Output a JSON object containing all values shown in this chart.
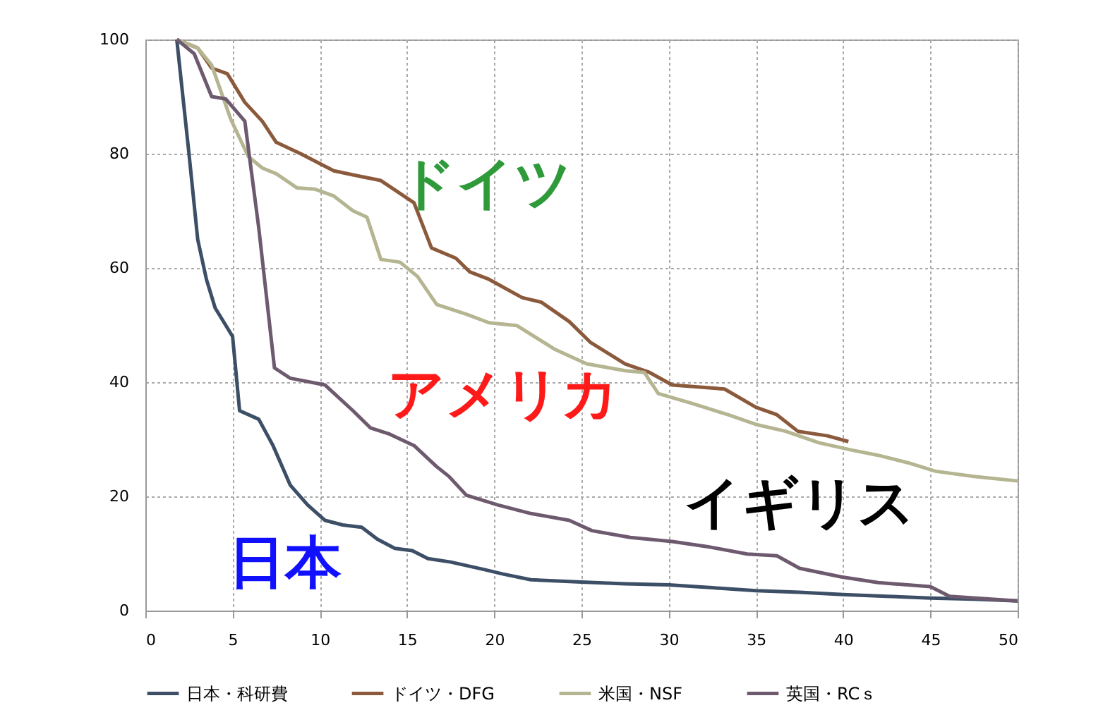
{
  "chart_data": {
    "type": "line",
    "xlim": [
      0,
      50
    ],
    "xticks": [
      0,
      5,
      10,
      15,
      20,
      25,
      30,
      35,
      40,
      45,
      50
    ],
    "ylim": [
      0,
      100
    ],
    "yticks": [
      0,
      20,
      40,
      60,
      80,
      100
    ],
    "grid": true,
    "legend": "bottom",
    "marker": "none",
    "line_style": "solid",
    "series": [
      {
        "name": "日本・科研費",
        "color": "#3d4f66",
        "x": [
          1.8,
          2.5,
          3,
          3.5,
          4,
          5,
          5.4,
          6.5,
          7.3,
          8.3,
          9.3,
          10.3,
          11.3,
          12.4,
          13.3,
          14.3,
          15.3,
          16.2,
          17.5,
          19.4,
          20.5,
          22.1,
          25,
          27.5,
          30,
          32.5,
          35,
          37.5,
          40,
          42.5,
          45,
          47.5,
          50
        ],
        "values": [
          100,
          80,
          65,
          58,
          53,
          48,
          35,
          33.5,
          29,
          22,
          18.5,
          15.8,
          15,
          14.6,
          12.5,
          10.9,
          10.5,
          9.1,
          8.5,
          7.2,
          6.4,
          5.4,
          5,
          4.7,
          4.5,
          4,
          3.5,
          3.2,
          2.8,
          2.5,
          2.2,
          2,
          1.7
        ]
      },
      {
        "name": "ドイツ・DFG",
        "color": "#8b5a3c",
        "x": [
          1.8,
          3,
          3.8,
          4.7,
          5.7,
          6.7,
          7.5,
          8.9,
          10.8,
          11.9,
          13.5,
          15.4,
          16.4,
          17.8,
          18.6,
          19.7,
          21.6,
          22.7,
          24.3,
          25.5,
          27.5,
          28.9,
          30.2,
          33.2,
          35,
          36.2,
          37.4,
          39.1,
          40.3
        ],
        "values": [
          100,
          98.5,
          95,
          94,
          89,
          85.7,
          82,
          80,
          77,
          76.3,
          75.3,
          71.4,
          63.5,
          61.7,
          59.3,
          58,
          54.8,
          54,
          50.6,
          47,
          43.2,
          41.7,
          39.5,
          38.8,
          35.6,
          34.3,
          31.4,
          30.6,
          29.6
        ]
      },
      {
        "name": "米国・NSF",
        "color": "#b5b592",
        "x": [
          1.8,
          3,
          3.8,
          4.9,
          5.9,
          6.7,
          7.5,
          8.7,
          9.7,
          10.8,
          11.9,
          12.7,
          13.5,
          14.6,
          15.6,
          16.7,
          18.4,
          19.7,
          21.3,
          23.5,
          25.3,
          27.5,
          28.6,
          29.4,
          31.3,
          33.4,
          35,
          36.7,
          38.6,
          40.5,
          42,
          43.7,
          45.3,
          47.5,
          50
        ],
        "values": [
          100,
          98.5,
          95.5,
          86,
          79.5,
          77.5,
          76.5,
          74,
          73.8,
          72.6,
          70,
          68.9,
          61.5,
          61,
          58.5,
          53.6,
          51.9,
          50.4,
          49.9,
          45.7,
          43.2,
          42,
          41.7,
          38,
          36.3,
          34.3,
          32.6,
          31.4,
          29.4,
          28.1,
          27.2,
          25.9,
          24.4,
          23.5,
          22.7
        ]
      },
      {
        "name": "英国・RCｓ",
        "color": "#6e5a6e",
        "x": [
          1.8,
          2.8,
          3.8,
          4.6,
          5.7,
          6.5,
          7.4,
          8.3,
          10.3,
          11.9,
          12.9,
          14,
          15.4,
          16.7,
          17.4,
          18.4,
          20.2,
          22.1,
          24.3,
          25.6,
          27.8,
          30.2,
          32.4,
          34.5,
          36.2,
          37.5,
          39.9,
          42,
          45,
          46.1,
          50
        ],
        "values": [
          100,
          97.5,
          90,
          89.6,
          85.7,
          67,
          42.5,
          40.7,
          39.5,
          35,
          32,
          30.9,
          28.9,
          25.2,
          23.5,
          20.2,
          18.5,
          17,
          15.8,
          14,
          12.8,
          12.1,
          11.1,
          9.9,
          9.6,
          7.4,
          5.9,
          4.9,
          4.2,
          2.5,
          1.7
        ]
      }
    ],
    "annotations": [
      "ドイツ",
      "アメリカ",
      "イギリス",
      "日本"
    ]
  }
}
